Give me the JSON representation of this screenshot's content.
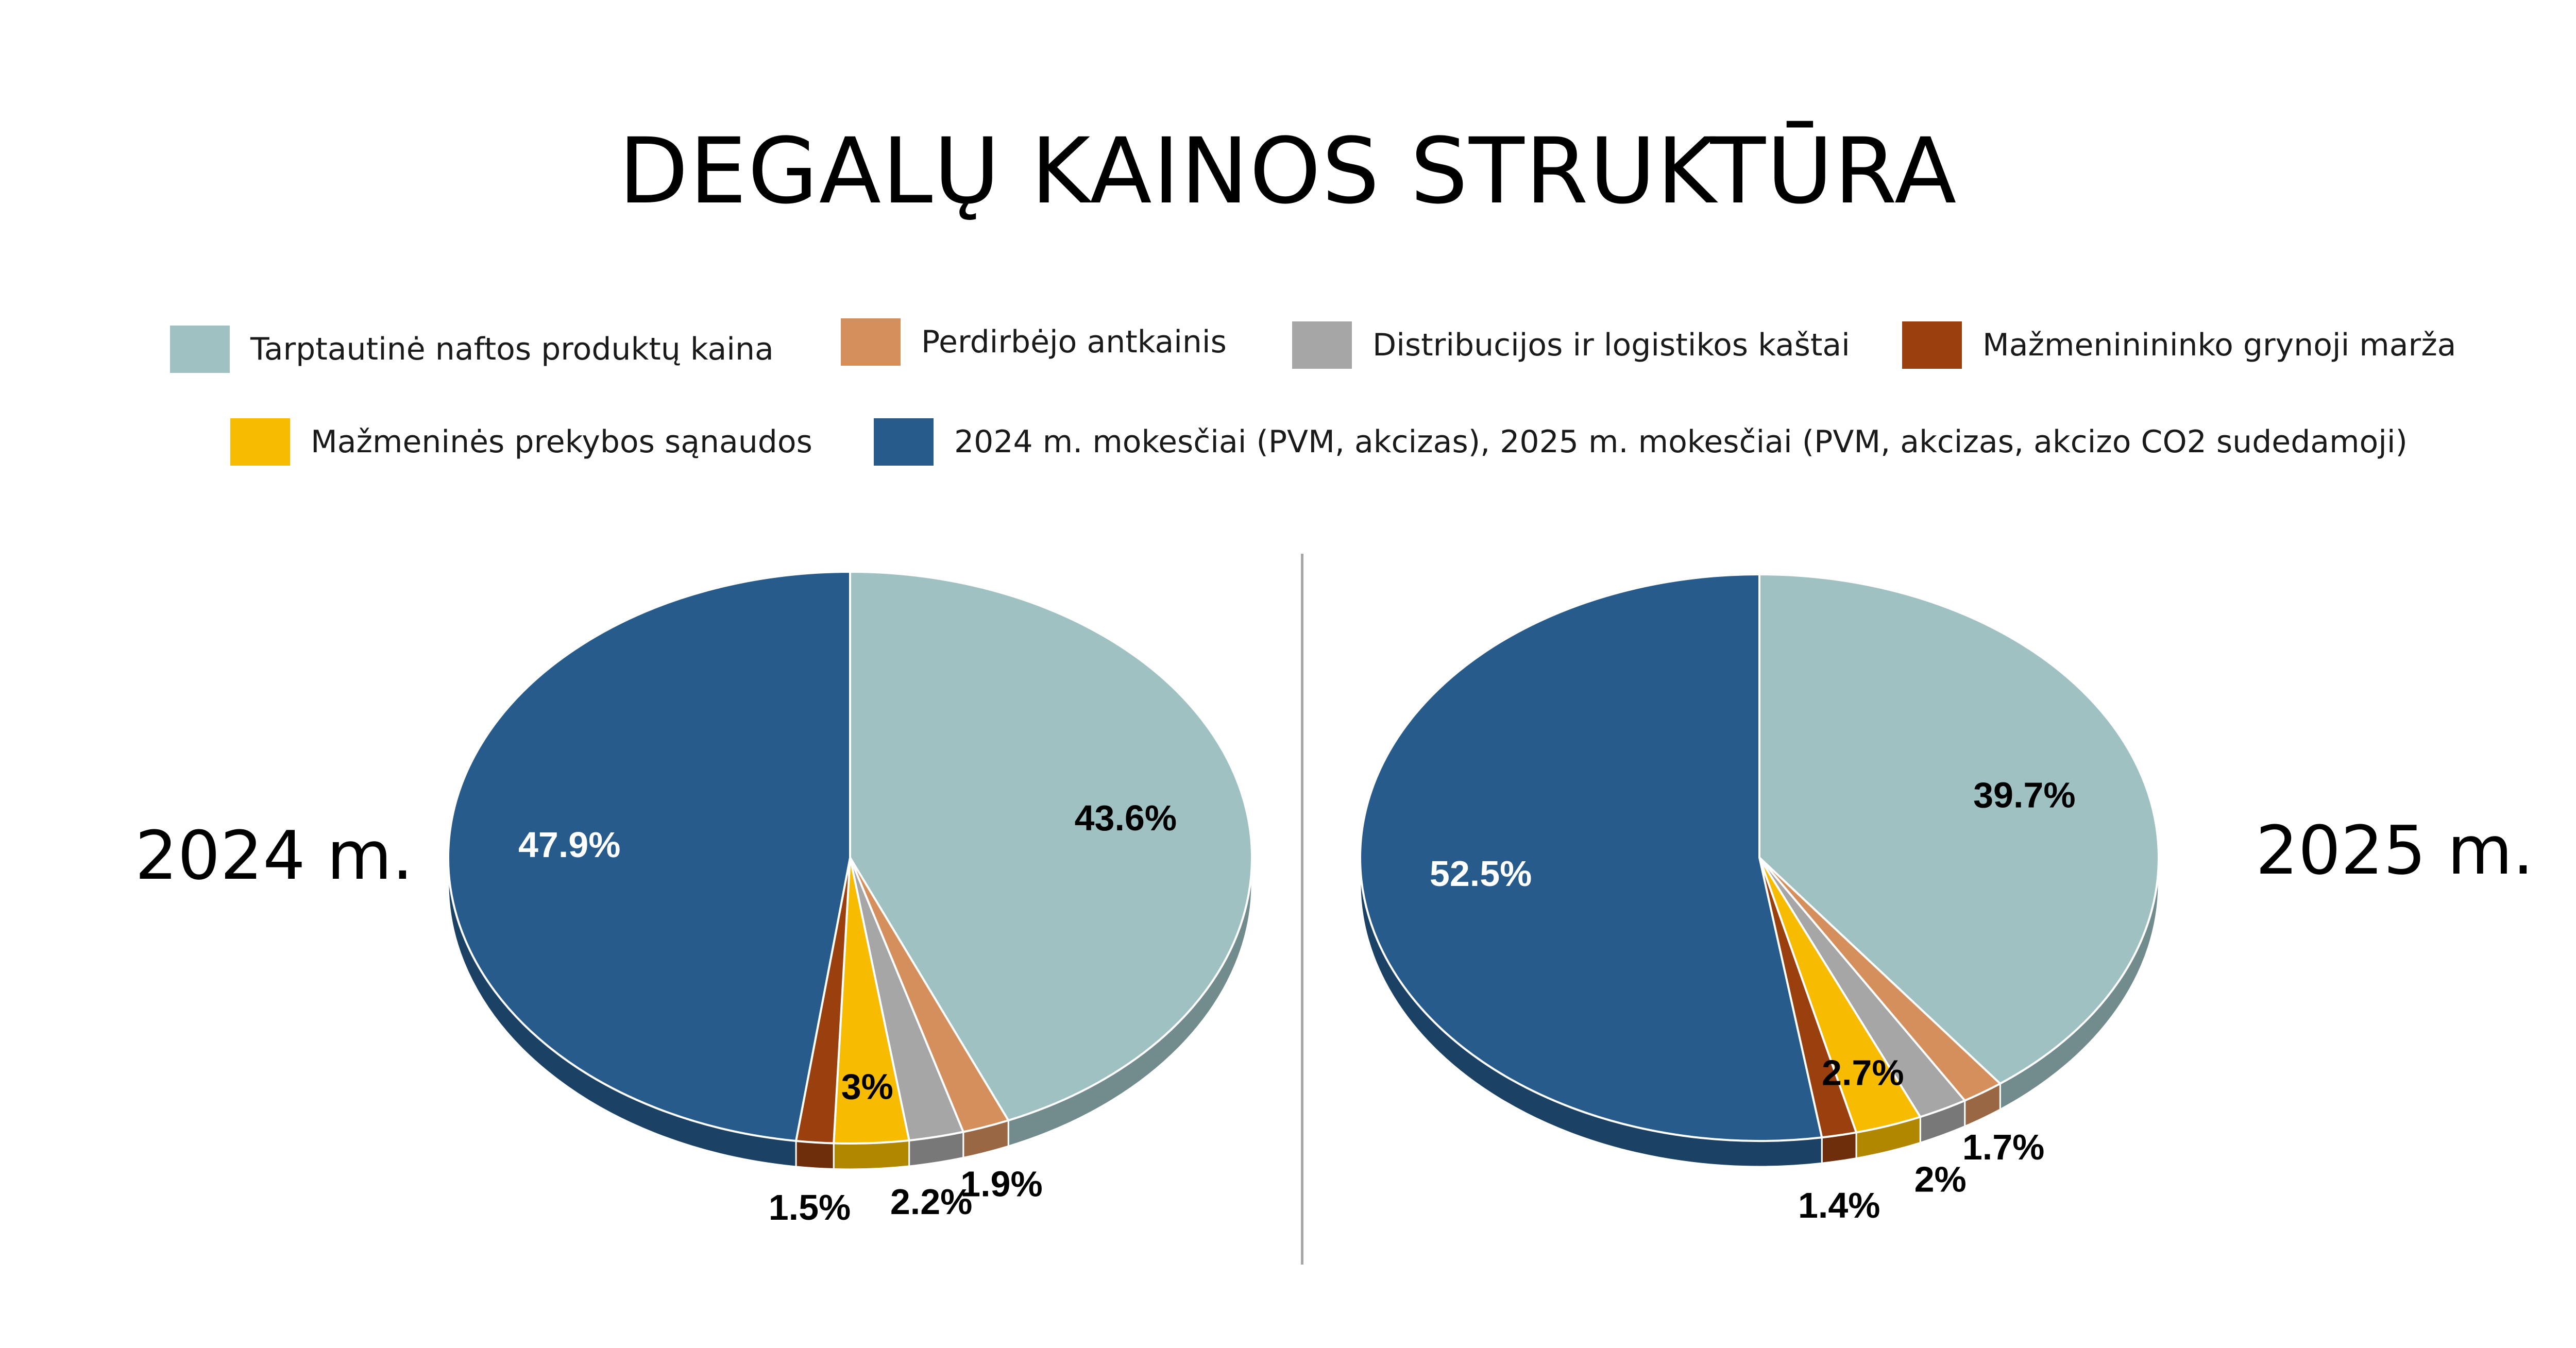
{
  "title": "DEGALŲ KAINOS STRUKTŪRA",
  "legend": [
    {
      "label": "Tarptautinė naftos produktų kaina",
      "color": "#9FC1C2"
    },
    {
      "label": "Perdirbėjo antkainis",
      "color": "#D58F5D"
    },
    {
      "label": "Distribucijos ir logistikos kaštai",
      "color": "#A6A6A6"
    },
    {
      "label": "Mažmeninininko grynoji marža",
      "color": "#9A400F"
    },
    {
      "label": "Mažmeninės prekybos sąnaudos",
      "color": "#F7BB00"
    },
    {
      "label": "2024 m. mokesčiai (PVM, akcizas), 2025 m. mokesčiai (PVM, akcizas, akcizo CO2 sudedamoji)",
      "color": "#265B8C"
    }
  ],
  "chart_data": [
    {
      "type": "pie",
      "title": "2024 m.",
      "categories": [
        "Tarptautinė naftos produktų kaina",
        "Perdirbėjo antkainis",
        "Distribucijos ir logistikos kaštai",
        "Mažmeninės prekybos sąnaudos",
        "Mažmeninininko grynoji marža",
        "2024 m. mokesčiai (PVM, akcizas), 2025 m. mokesčiai (PVM, akcizas, akcizo CO2 sudedamoji)"
      ],
      "values": [
        43.6,
        1.9,
        2.2,
        3.0,
        1.5,
        47.9
      ],
      "data_labels": [
        "43.6%",
        "1.9%",
        "2.2%",
        "3%",
        "1.5%",
        "47.9%"
      ],
      "colors": [
        "#9FC1C2",
        "#D58F5D",
        "#A6A6A6",
        "#F7BB00",
        "#9A400F",
        "#265B8C"
      ]
    },
    {
      "type": "pie",
      "title": "2025 m.",
      "categories": [
        "Tarptautinė naftos produktų kaina",
        "Perdirbėjo antkainis",
        "Distribucijos ir logistikos kaštai",
        "Mažmeninės prekybos sąnaudos",
        "Mažmeninininko grynoji marža",
        "2024 m. mokesčiai (PVM, akcizas), 2025 m. mokesčiai (PVM, akcizas, akcizo CO2 sudedamoji)"
      ],
      "values": [
        39.7,
        1.7,
        2.0,
        2.7,
        1.4,
        52.5
      ],
      "data_labels": [
        "39.7%",
        "1.7%",
        "2%",
        "2.7%",
        "1.4%",
        "52.5%"
      ],
      "colors": [
        "#9FC1C2",
        "#D58F5D",
        "#A6A6A6",
        "#F7BB00",
        "#9A400F",
        "#265B8C"
      ]
    }
  ]
}
